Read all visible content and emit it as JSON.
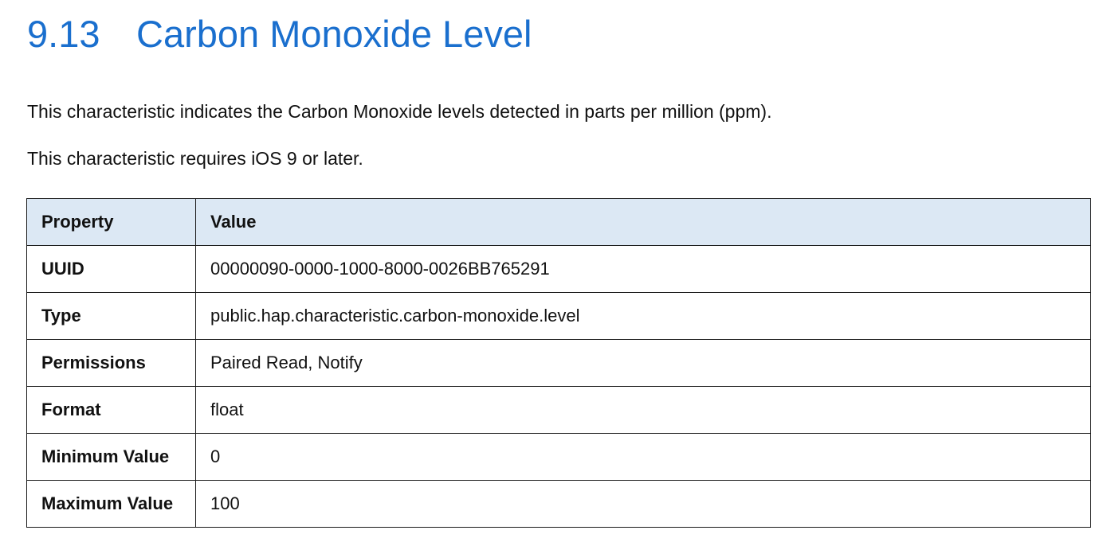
{
  "section": {
    "number": "9.13",
    "title": "Carbon Monoxide Level"
  },
  "paragraphs": [
    "This characteristic indicates the Carbon Monoxide levels detected in parts per million (ppm).",
    "This characteristic requires iOS 9 or later."
  ],
  "table": {
    "headers": [
      "Property",
      "Value"
    ],
    "rows": [
      {
        "property": "UUID",
        "value": "00000090-0000-1000-8000-0026BB765291"
      },
      {
        "property": "Type",
        "value": "public.hap.characteristic.carbon-monoxide.level"
      },
      {
        "property": "Permissions",
        "value": "Paired Read, Notify"
      },
      {
        "property": "Format",
        "value": "float"
      },
      {
        "property": "Minimum Value",
        "value": "0"
      },
      {
        "property": "Maximum Value",
        "value": "100"
      }
    ]
  },
  "colors": {
    "heading": "#1a6fce",
    "table_header_bg": "#dce8f4",
    "text": "#111111"
  }
}
